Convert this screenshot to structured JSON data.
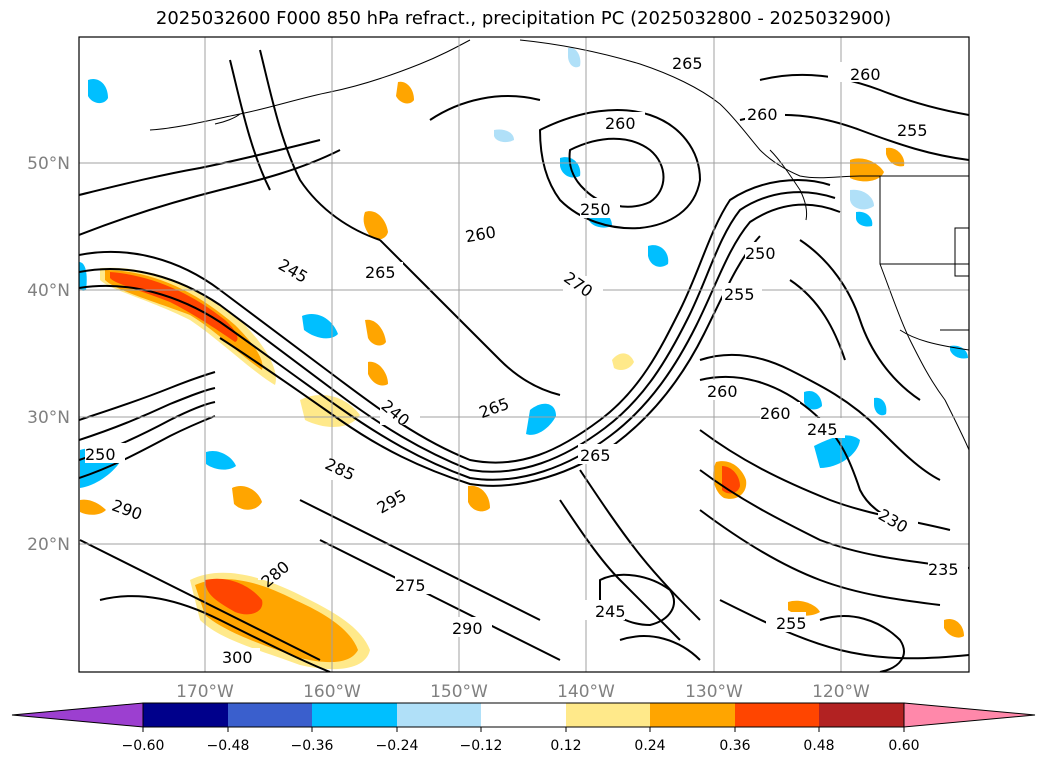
{
  "title": "2025032600 F000 850 hPa refract., precipitation PC (2025032800 - 2025032900)",
  "lat_labels": [
    "50°N",
    "40°N",
    "30°N",
    "20°N"
  ],
  "lon_labels": [
    "170°W",
    "160°W",
    "150°W",
    "140°W",
    "130°W",
    "120°W"
  ],
  "colorbar": {
    "ticks": [
      "−0.60",
      "−0.48",
      "−0.36",
      "−0.24",
      "−0.12",
      "0.12",
      "0.24",
      "0.36",
      "0.48",
      "0.60"
    ],
    "colors": [
      "#9c3fd0",
      "#00008b",
      "#3a5fcd",
      "#00bfff",
      "#b0e0f8",
      "#ffffff",
      "#ffe98a",
      "#ffa500",
      "#ff4500",
      "#b22222",
      "#ff88aa"
    ]
  },
  "contour_labels": [
    "265",
    "260",
    "255",
    "250",
    "245",
    "240",
    "270",
    "275",
    "280",
    "285",
    "290",
    "295",
    "300",
    "230",
    "235",
    "250"
  ]
}
